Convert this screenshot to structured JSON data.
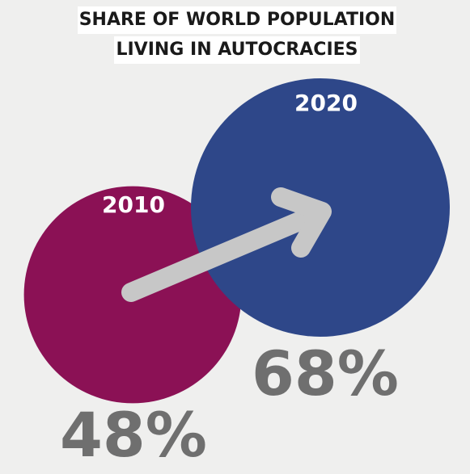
{
  "title": {
    "line1": "SHARE OF WORLD POPULATION",
    "line2": "LIVING IN AUTOCRACIES"
  },
  "chart_data": {
    "type": "bubble",
    "title": "SHARE OF WORLD POPULATION LIVING IN AUTOCRACIES",
    "unit": "%",
    "categories": [
      "2010",
      "2020"
    ],
    "values": [
      48,
      68
    ],
    "labels": [
      "48%",
      "68%"
    ],
    "colors": [
      "#8b1155",
      "#2e4789"
    ],
    "arrow": {
      "from": "2010",
      "to": "2020",
      "color": "#c7c7c7"
    }
  }
}
